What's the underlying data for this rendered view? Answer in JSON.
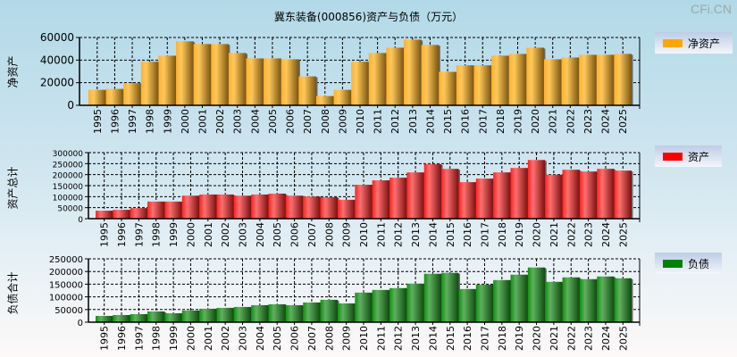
{
  "title": "冀东装备(000856)资产与负债（万元）",
  "watermark": "CFi.CN",
  "chart_data": [
    {
      "type": "bar",
      "ylabel": "净资产",
      "legend": "净资产",
      "color": "#ffa500",
      "ylim": [
        0,
        60000
      ],
      "yticks": [
        "0",
        "20000",
        "40000",
        "60000"
      ],
      "categories": [
        "1995",
        "1996",
        "1997",
        "1998",
        "1999",
        "2000",
        "2001",
        "2002",
        "2003",
        "2004",
        "2005",
        "2006",
        "2007",
        "2008",
        "2009",
        "2010",
        "2011",
        "2012",
        "2013",
        "2014",
        "2015",
        "2016",
        "2017",
        "2018",
        "2019",
        "2020",
        "2021",
        "2022",
        "2023",
        "2024",
        "2025"
      ],
      "values": [
        13700,
        14500,
        19600,
        38600,
        43900,
        56600,
        54200,
        54200,
        46300,
        41500,
        41500,
        40700,
        25600,
        8200,
        13700,
        38600,
        46300,
        51000,
        58100,
        53400,
        29600,
        35400,
        35400,
        43900,
        45500,
        51000,
        40700,
        42300,
        44700,
        44700,
        45500
      ]
    },
    {
      "type": "bar",
      "ylabel": "资产总计",
      "legend": "资产",
      "color": "#ff0000",
      "ylim": [
        0,
        300000
      ],
      "yticks": [
        "0",
        "50000",
        "100000",
        "150000",
        "200000",
        "250000",
        "300000"
      ],
      "categories": [
        "1995",
        "1996",
        "1997",
        "1998",
        "1999",
        "2000",
        "2001",
        "2002",
        "2003",
        "2004",
        "2005",
        "2006",
        "2007",
        "2008",
        "2009",
        "2010",
        "2011",
        "2012",
        "2013",
        "2014",
        "2015",
        "2016",
        "2017",
        "2018",
        "2019",
        "2020",
        "2021",
        "2022",
        "2023",
        "2024",
        "2025"
      ],
      "values": [
        36200,
        40200,
        48200,
        77700,
        77700,
        104500,
        109800,
        109800,
        104500,
        109800,
        113800,
        104500,
        100400,
        97700,
        85700,
        154000,
        174100,
        186100,
        210200,
        247700,
        226300,
        166000,
        182100,
        210200,
        230300,
        266500,
        199500,
        222300,
        214200,
        226300,
        218300
      ]
    },
    {
      "type": "bar",
      "ylabel": "负债合计",
      "legend": "负债",
      "color": "#008000",
      "ylim": [
        0,
        250000
      ],
      "yticks": [
        "0",
        "50000",
        "100000",
        "150000",
        "200000",
        "250000"
      ],
      "categories": [
        "1995",
        "1996",
        "1997",
        "1998",
        "1999",
        "2000",
        "2001",
        "2002",
        "2003",
        "2004",
        "2005",
        "2006",
        "2007",
        "2008",
        "2009",
        "2010",
        "2011",
        "2012",
        "2013",
        "2014",
        "2015",
        "2016",
        "2017",
        "2018",
        "2019",
        "2020",
        "2021",
        "2022",
        "2023",
        "2024",
        "2025"
      ],
      "values": [
        24800,
        28300,
        31800,
        42400,
        35400,
        46000,
        53100,
        56600,
        60100,
        67200,
        70700,
        67200,
        77800,
        88400,
        74300,
        116700,
        127300,
        134400,
        152100,
        191000,
        194500,
        130900,
        148600,
        166200,
        187500,
        215800,
        159200,
        176900,
        169800,
        180400,
        173300
      ]
    }
  ]
}
